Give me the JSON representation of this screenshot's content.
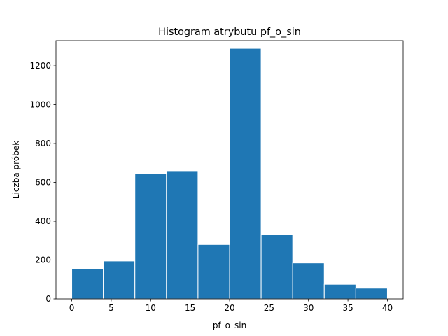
{
  "chart_data": {
    "type": "bar",
    "title": "Histogram atrybutu pf_o_sin",
    "xlabel": "pf_o_sin",
    "ylabel": "Liczba próbek",
    "xlim": [
      -2,
      42
    ],
    "ylim": [
      0,
      1330
    ],
    "bin_edges": [
      0,
      4,
      8,
      12,
      16,
      20,
      24,
      28,
      32,
      36,
      40
    ],
    "values": [
      155,
      195,
      645,
      660,
      280,
      1290,
      330,
      185,
      75,
      55
    ],
    "x_ticks": [
      0,
      5,
      10,
      15,
      20,
      25,
      30,
      35,
      40
    ],
    "x_tick_labels": [
      "0",
      "5",
      "10",
      "15",
      "20",
      "25",
      "30",
      "35",
      "40"
    ],
    "y_ticks": [
      0,
      200,
      400,
      600,
      800,
      1000,
      1200
    ],
    "y_tick_labels": [
      "0",
      "200",
      "400",
      "600",
      "800",
      "1000",
      "1200"
    ],
    "bar_color": "#1f77b4",
    "edge_color": "#ffffff",
    "grid": false,
    "legend": "none"
  }
}
